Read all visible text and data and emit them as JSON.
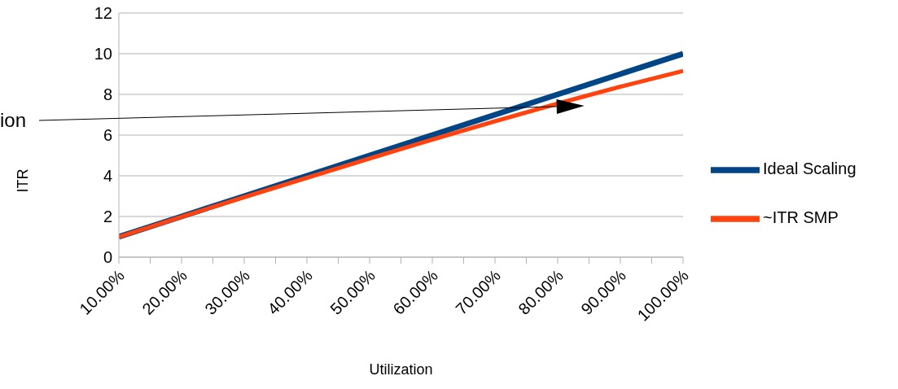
{
  "chart_data": {
    "type": "line",
    "xlabel": "Utilization",
    "ylabel": "ITR",
    "x": [
      0.1,
      0.2,
      0.3,
      0.4,
      0.5,
      0.6,
      0.7,
      0.8,
      0.9,
      1.0
    ],
    "series": [
      {
        "name": "Ideal Scaling",
        "color": "#004586",
        "values": [
          1,
          2,
          3,
          4,
          5,
          6,
          7,
          8,
          9,
          10
        ]
      },
      {
        "name": "~ITR SMP",
        "color": "#ff420e",
        "values": [
          1,
          1.98,
          2.95,
          3.9,
          4.85,
          5.78,
          6.68,
          7.55,
          8.38,
          9.15
        ]
      }
    ],
    "xlim": [
      0.1,
      1.0
    ],
    "xticks": [
      {
        "value": 0.1,
        "label": "10.00%"
      },
      {
        "value": 0.15,
        "label": null
      },
      {
        "value": 0.2,
        "label": "20.00%"
      },
      {
        "value": 0.25,
        "label": null
      },
      {
        "value": 0.3,
        "label": "30.00%"
      },
      {
        "value": 0.35,
        "label": null
      },
      {
        "value": 0.4,
        "label": "40.00%"
      },
      {
        "value": 0.45,
        "label": null
      },
      {
        "value": 0.5,
        "label": "50.00%"
      },
      {
        "value": 0.55,
        "label": null
      },
      {
        "value": 0.6,
        "label": "60.00%"
      },
      {
        "value": 0.65,
        "label": null
      },
      {
        "value": 0.7,
        "label": "70.00%"
      },
      {
        "value": 0.75,
        "label": null
      },
      {
        "value": 0.8,
        "label": "80.00%"
      },
      {
        "value": 0.85,
        "label": null
      },
      {
        "value": 0.9,
        "label": "90.00%"
      },
      {
        "value": 0.95,
        "label": null
      },
      {
        "value": 1.0,
        "label": "100.00%"
      }
    ],
    "ylim": [
      0,
      12
    ],
    "yticks": [
      0,
      2,
      4,
      6,
      8,
      10,
      12
    ],
    "grid": "y",
    "legend": "right",
    "marker": "none",
    "line_style": "solid",
    "annotations": [
      "ion"
    ]
  }
}
